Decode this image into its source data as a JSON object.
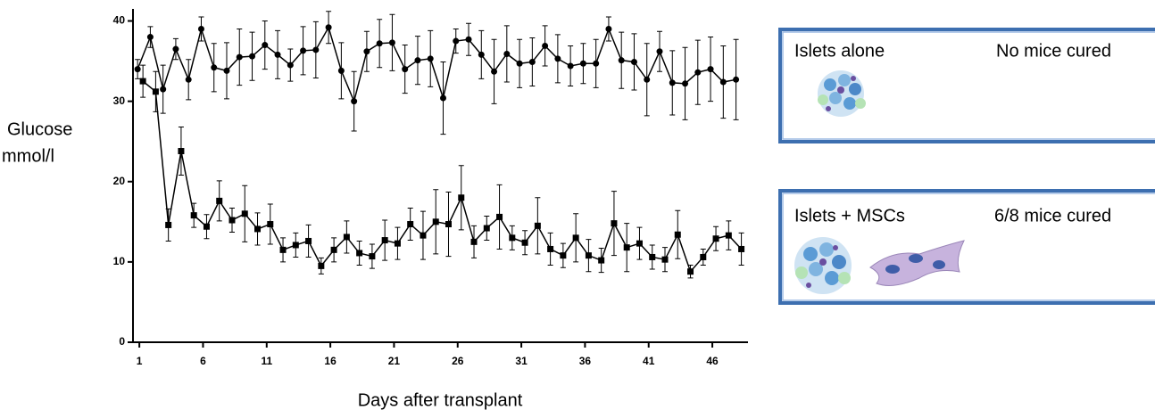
{
  "chart_data": {
    "type": "errorbar-line",
    "ylabel": [
      "Glucose",
      "mmol/l"
    ],
    "xlabel": "Days after transplant",
    "x": [
      1,
      2,
      3,
      4,
      5,
      6,
      7,
      8,
      9,
      10,
      11,
      12,
      13,
      14,
      15,
      16,
      17,
      18,
      19,
      20,
      21,
      22,
      23,
      24,
      25,
      26,
      27,
      28,
      29,
      30,
      31,
      32,
      33,
      34,
      35,
      36,
      37,
      38,
      39,
      40,
      41,
      42,
      43,
      44,
      45,
      46,
      47,
      48
    ],
    "xlim": [
      0.5,
      48.8
    ],
    "xticks": [
      1,
      6,
      11,
      16,
      21,
      26,
      31,
      36,
      41,
      46
    ],
    "ylim": [
      0,
      41.5
    ],
    "yticks": [
      0,
      10,
      20,
      30,
      40
    ],
    "series": [
      {
        "marker": "circle",
        "color": "#000000",
        "values": [
          34,
          38,
          31.5,
          36.5,
          32.7,
          39,
          34.2,
          33.8,
          35.5,
          35.6,
          37,
          35.8,
          34.5,
          36.3,
          36.4,
          39.2,
          33.8,
          30,
          36.2,
          37.2,
          37.3,
          34,
          35.1,
          35.3,
          30.4,
          37.5,
          37.7,
          35.8,
          33.7,
          35.9,
          34.7,
          34.9,
          36.9,
          35.3,
          34.4,
          34.7,
          34.7,
          39,
          35.1,
          34.9,
          32.7,
          36.2,
          32.3,
          32.2,
          33.6,
          34,
          32.4,
          32.7
        ],
        "errors": [
          1.2,
          1.3,
          3,
          1.3,
          2.5,
          1.5,
          3,
          3.5,
          3.5,
          3,
          3,
          3,
          2,
          3,
          3.5,
          2,
          3.5,
          3.7,
          2.5,
          3,
          3.5,
          3,
          3,
          3.5,
          4.5,
          1.5,
          2,
          3,
          4,
          3.5,
          3,
          3,
          2.5,
          3,
          2.5,
          2.5,
          3,
          1.5,
          3.5,
          3.5,
          4.5,
          2.5,
          4,
          4.5,
          4,
          4,
          4.5,
          5
        ]
      },
      {
        "marker": "square",
        "color": "#000000",
        "values": [
          32.5,
          31.2,
          14.6,
          23.8,
          15.8,
          14.4,
          17.6,
          15.2,
          16,
          14.1,
          14.7,
          11.5,
          12.1,
          12.6,
          9.5,
          11.5,
          13.1,
          11.1,
          10.7,
          12.7,
          12.3,
          14.7,
          13.3,
          15,
          14.7,
          18,
          12.5,
          14.2,
          15.6,
          13,
          12.4,
          14.5,
          11.6,
          10.8,
          13,
          10.8,
          10.2,
          14.8,
          11.8,
          12.3,
          10.6,
          10.3,
          13.4,
          8.8,
          10.6,
          12.9,
          13.3,
          11.6
        ],
        "errors": [
          2,
          2.5,
          2,
          3,
          1.5,
          1.5,
          2.5,
          1.5,
          3.5,
          2,
          2.5,
          1.5,
          1.5,
          2,
          1,
          1.5,
          2,
          1.5,
          1.5,
          2.5,
          2,
          2,
          3,
          4,
          4,
          4,
          2,
          1.5,
          4,
          1.5,
          1.5,
          3.5,
          2,
          1.5,
          3,
          2,
          1.5,
          4,
          3,
          2,
          1.5,
          1.5,
          3,
          0.8,
          1,
          1.5,
          1.8,
          2
        ]
      }
    ]
  },
  "panels": [
    {
      "title": "Islets alone",
      "result": "No mice cured"
    },
    {
      "title": "Islets + MSCs",
      "result": "6/8 mice cured"
    }
  ]
}
